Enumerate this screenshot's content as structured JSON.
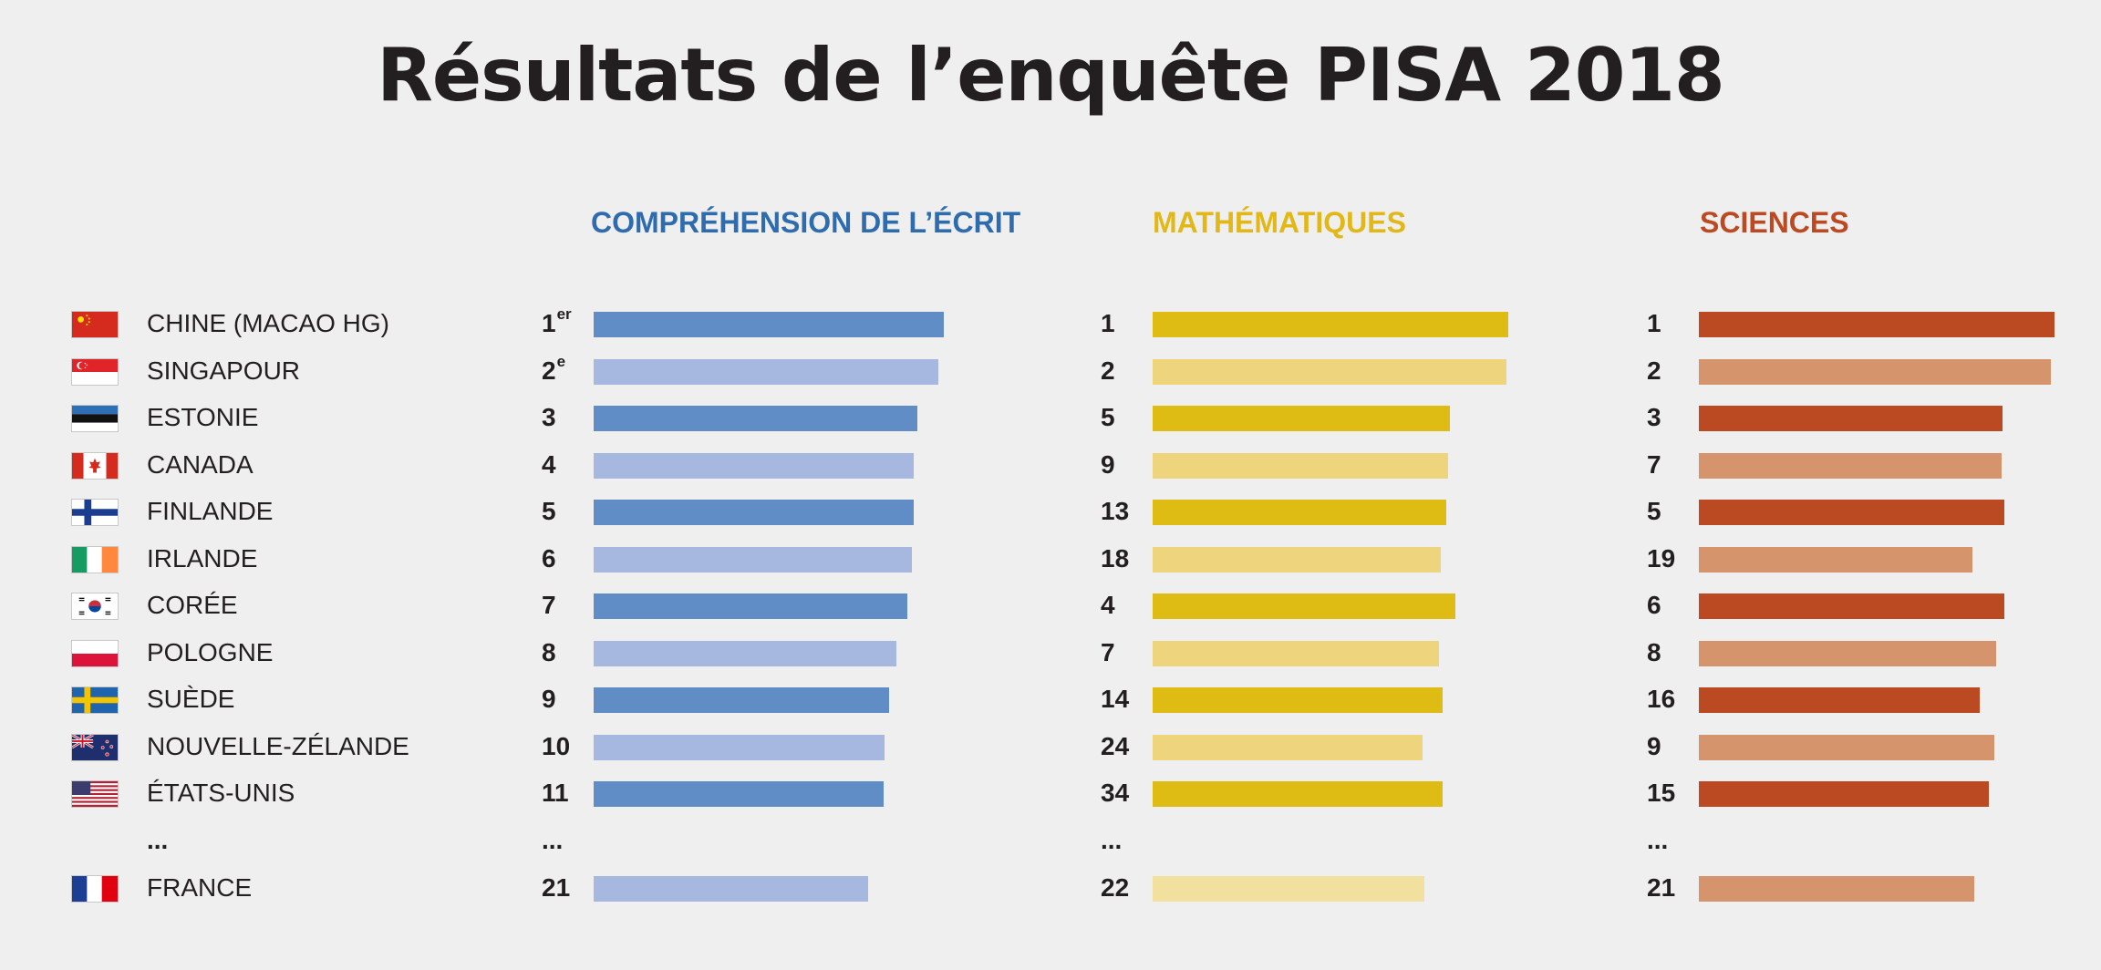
{
  "title": "Résultats de l’enquête PISA 2018",
  "countries": [
    "CHINE (MACAO HG)",
    "SINGAPOUR",
    "ESTONIE",
    "CANADA",
    "FINLANDE",
    "IRLANDE",
    "CORÉE",
    "POLOGNE",
    "SUÈDE",
    "NOUVELLE-ZÉLANDE",
    "ÉTATS-UNIS",
    "...",
    "FRANCE"
  ],
  "flags": [
    "china-macao-flag-icon",
    "singapore-flag-icon",
    "estonia-flag-icon",
    "canada-flag-icon",
    "finland-flag-icon",
    "ireland-flag-icon",
    "korea-flag-icon",
    "poland-flag-icon",
    "sweden-flag-icon",
    "new-zealand-flag-icon",
    "usa-flag-icon",
    "",
    "france-flag-icon"
  ],
  "ellipsis": "...",
  "chart_data": [
    {
      "type": "bar",
      "title": "COMPRÉHENSION DE L’ÉCRIT",
      "title_color": "#2e6cae",
      "colors": [
        "#618dc7",
        "#a6b8e0",
        "#a6b8e0"
      ],
      "ranks": [
        "1",
        "2",
        "3",
        "4",
        "5",
        "6",
        "7",
        "8",
        "9",
        "10",
        "11",
        "...",
        "21"
      ],
      "rank_suffix": [
        "er",
        "e",
        "",
        "",
        "",
        "",
        "",
        "",
        "",
        "",
        "",
        "",
        ""
      ],
      "values": [
        1.0,
        0.985,
        0.925,
        0.915,
        0.915,
        0.91,
        0.895,
        0.865,
        0.845,
        0.83,
        0.828,
        null,
        0.785
      ]
    },
    {
      "type": "bar",
      "title": "MATHÉMATIQUES",
      "title_color": "#e2b819",
      "colors": [
        "#dfbc14",
        "#efd47e",
        "#f2e09e"
      ],
      "ranks": [
        "1",
        "2",
        "5",
        "9",
        "13",
        "18",
        "4",
        "7",
        "14",
        "24",
        "34",
        "...",
        "22"
      ],
      "rank_suffix": [
        "",
        "",
        "",
        "",
        "",
        "",
        "",
        "",
        "",
        "",
        "",
        "",
        ""
      ],
      "values": [
        1.0,
        0.995,
        0.835,
        0.83,
        0.825,
        0.81,
        0.85,
        0.805,
        0.815,
        0.76,
        0.815,
        null,
        0.765
      ]
    },
    {
      "type": "bar",
      "title": "SCIENCES",
      "title_color": "#bb4a23",
      "colors": [
        "#bb4a23",
        "#d6946d",
        "#d6946d"
      ],
      "ranks": [
        "1",
        "2",
        "3",
        "7",
        "5",
        "19",
        "6",
        "8",
        "16",
        "9",
        "15",
        "...",
        "21"
      ],
      "rank_suffix": [
        "",
        "",
        "",
        "",
        "",
        "",
        "",
        "",
        "",
        "",
        "",
        "",
        ""
      ],
      "values": [
        1.0,
        0.99,
        0.855,
        0.85,
        0.86,
        0.77,
        0.86,
        0.835,
        0.79,
        0.83,
        0.815,
        null,
        0.775
      ]
    }
  ]
}
